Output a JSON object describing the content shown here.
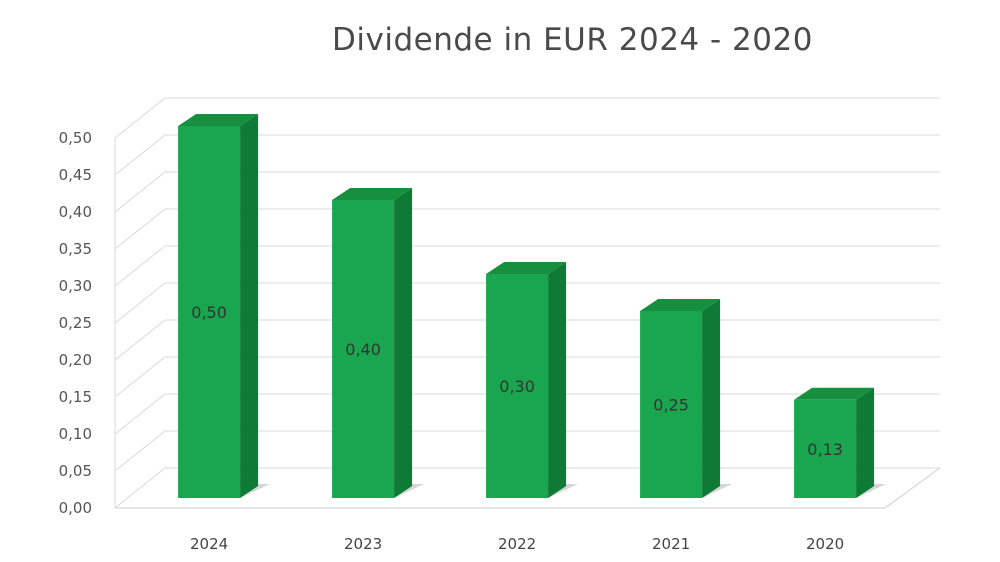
{
  "chart_data": {
    "type": "bar",
    "title": "Dividende in EUR 2024 - 2020",
    "categories": [
      "2024",
      "2023",
      "2022",
      "2021",
      "2020"
    ],
    "values": [
      0.5,
      0.4,
      0.3,
      0.25,
      0.13
    ],
    "data_labels": [
      "0,50",
      "0,40",
      "0,30",
      "0,25",
      "0,13"
    ],
    "y_ticks": [
      "0,00",
      "0,05",
      "0,10",
      "0,15",
      "0,20",
      "0,25",
      "0,30",
      "0,35",
      "0,40",
      "0,45",
      "0,50"
    ],
    "ylim": [
      0,
      0.5
    ],
    "grid": true,
    "legend": "none",
    "style": "3d-column",
    "colors": {
      "bar_front": "#1aa64f",
      "bar_side": "#0e7a35",
      "bar_top": "#16903f",
      "grid": "#d9d9d9"
    }
  }
}
